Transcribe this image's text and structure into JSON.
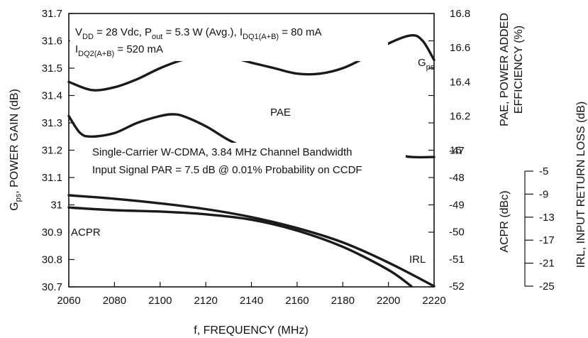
{
  "chart_data": {
    "type": "line",
    "title": "",
    "xlabel": "f, FREQUENCY (MHz)",
    "x_ticks": [
      "2060",
      "2080",
      "2100",
      "2120",
      "2140",
      "2160",
      "2180",
      "2200",
      "2220"
    ],
    "xlim": [
      2060,
      2220
    ],
    "left_axis": {
      "label_main": "G",
      "label_sub": "ps",
      "label_rest": ", POWER GAIN (dB)",
      "ylim": [
        30.7,
        31.7
      ],
      "ticks": [
        "30.7",
        "30.8",
        "30.9",
        "31",
        "31.1",
        "31.2",
        "31.3",
        "31.4",
        "31.5",
        "31.6",
        "31.7"
      ]
    },
    "right_axis_pae": {
      "label_line1": "PAE, POWER ADDED",
      "label_line2": "EFFICIENCY (%)",
      "ylim": [
        15.2,
        16.8
      ],
      "ticks": [
        "16",
        "16.2",
        "16.4",
        "16.6",
        "16.8"
      ]
    },
    "right_axis_acpr": {
      "label": "ACPR (dBc)",
      "ylim": [
        -52,
        -47
      ],
      "ticks": [
        "-47",
        "-48",
        "-49",
        "-50",
        "-51",
        "-52"
      ]
    },
    "far_right_axis_irl": {
      "label": "IRL, INPUT RETURN LOSS (dB)",
      "ylim": [
        -25,
        -5
      ],
      "ticks": [
        "-5",
        "-9",
        "-13",
        "-17",
        "-21",
        "-25"
      ]
    },
    "annotations": {
      "cond1": {
        "a": "V",
        "a_sub": "DD",
        "b": " = 28 Vdc, P",
        "b_sub": "out",
        "c": " = 5.3 W (Avg.), I",
        "c_sub": "DQ1(A+B)",
        "d": " = 80 mA"
      },
      "cond2": {
        "a": "I",
        "a_sub": "DQ2(A+B)",
        "b": " = 520 mA"
      },
      "signal1": "Single-Carrier W-CDMA, 3.84 MHz Channel Bandwidth",
      "signal2": "Input Signal PAR = 7.5 dB @ 0.01% Probability on CCDF"
    },
    "series": [
      {
        "name": "G",
        "name_sub": "ps",
        "axis": "left",
        "x": [
          2060,
          2070,
          2080,
          2090,
          2100,
          2110,
          2120,
          2130,
          2140,
          2150,
          2160,
          2170,
          2180,
          2190,
          2200,
          2210,
          2215,
          2220
        ],
        "y": [
          31.45,
          31.42,
          31.43,
          31.46,
          31.5,
          31.53,
          31.54,
          31.54,
          31.52,
          31.5,
          31.48,
          31.48,
          31.5,
          31.54,
          31.59,
          31.62,
          31.6,
          31.53
        ]
      },
      {
        "name": "PAE",
        "axis": "pae",
        "x": [
          2060,
          2065,
          2070,
          2080,
          2090,
          2100,
          2105,
          2110,
          2120,
          2130,
          2140,
          2150,
          2160,
          2170,
          2180,
          2190,
          2200,
          2210,
          2220
        ],
        "y": [
          16.2,
          16.1,
          16.08,
          16.1,
          16.16,
          16.2,
          16.21,
          16.2,
          16.14,
          16.06,
          16.0,
          15.96,
          15.94,
          15.94,
          15.95,
          15.97,
          15.98,
          15.96,
          15.96
        ]
      },
      {
        "name": "ACPR",
        "axis": "acpr",
        "x": [
          2060,
          2080,
          2100,
          2120,
          2140,
          2160,
          2180,
          2200,
          2210
        ],
        "y": [
          -49.1,
          -49.2,
          -49.25,
          -49.35,
          -49.55,
          -49.95,
          -50.55,
          -51.4,
          -52.0
        ]
      },
      {
        "name": "IRL",
        "axis": "irl",
        "x": [
          2060,
          2080,
          2100,
          2120,
          2140,
          2160,
          2180,
          2200,
          2220
        ],
        "y": [
          -9.2,
          -9.8,
          -10.6,
          -11.6,
          -13.0,
          -14.9,
          -17.4,
          -20.9,
          -25.0
        ]
      }
    ],
    "grid": false
  }
}
